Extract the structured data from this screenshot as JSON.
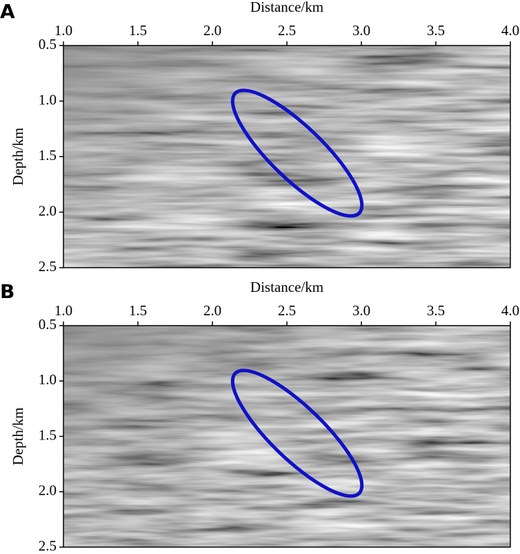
{
  "chart_data": [
    {
      "type": "image",
      "panel_label": "A",
      "xlabel": "Distance/km",
      "ylabel": "Depth/km",
      "xlim": [
        1.0,
        4.0
      ],
      "xticks": [
        {
          "value": 1.0,
          "label": "1.0"
        },
        {
          "value": 1.5,
          "label": "1.5"
        },
        {
          "value": 2.0,
          "label": "2.0"
        },
        {
          "value": 2.5,
          "label": "2.5"
        },
        {
          "value": 3.0,
          "label": "3.0"
        },
        {
          "value": 3.5,
          "label": "3.5"
        },
        {
          "value": 4.0,
          "label": "4.0"
        }
      ],
      "ylim": [
        0.5,
        2.5
      ],
      "yticks": [
        {
          "value": 0.5,
          "label": "0.5"
        },
        {
          "value": 1.0,
          "label": "1.0"
        },
        {
          "value": 1.5,
          "label": "1.5"
        },
        {
          "value": 2.0,
          "label": "2.0"
        },
        {
          "value": 2.5,
          "label": "2.5"
        }
      ]
    },
    {
      "type": "image",
      "panel_label": "B",
      "xlabel": "Distance/km",
      "ylabel": "Depth/km",
      "xlim": [
        1.0,
        4.0
      ],
      "xticks": [
        {
          "value": 1.0,
          "label": "1.0"
        },
        {
          "value": 1.5,
          "label": "1.5"
        },
        {
          "value": 2.0,
          "label": "2.0"
        },
        {
          "value": 2.5,
          "label": "2.5"
        },
        {
          "value": 3.0,
          "label": "3.0"
        },
        {
          "value": 3.5,
          "label": "3.5"
        },
        {
          "value": 4.0,
          "label": "4.0"
        }
      ],
      "ylim": [
        0.5,
        2.5
      ],
      "yticks": [
        {
          "value": 0.5,
          "label": "0.5"
        },
        {
          "value": 1.0,
          "label": "1.0"
        },
        {
          "value": 1.5,
          "label": "1.5"
        },
        {
          "value": 2.0,
          "label": "2.0"
        },
        {
          "value": 2.5,
          "label": "2.5"
        }
      ]
    }
  ]
}
